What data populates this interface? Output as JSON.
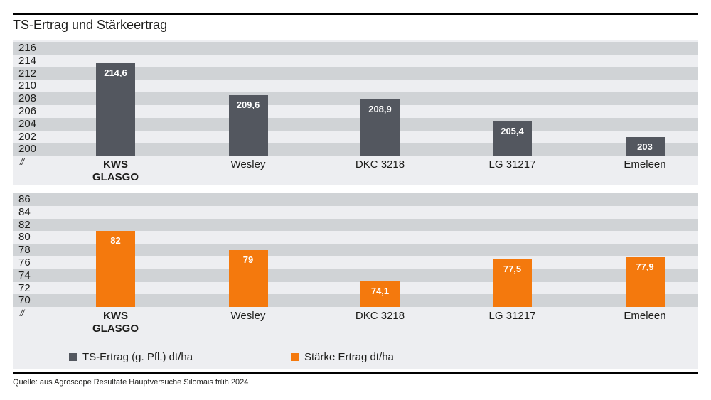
{
  "page": {
    "title": "TS-Ertrag und Stärkeertrag",
    "source": "Quelle: aus Agroscope Resultate Hauptversuche Silomais früh 2024"
  },
  "colors": {
    "ts_bar": "#53575f",
    "staerke_bar": "#f4790d",
    "panel_background": "#edeef1",
    "stripe_gray": "#d0d3d6",
    "value_label_text": "#ffffff",
    "text": "#1d1d1b"
  },
  "legend": {
    "items": [
      {
        "label": "TS-Ertrag (g. Pfl.) dt/ha",
        "color": "#53575f"
      },
      {
        "label": "Stärke Ertrag dt/ha",
        "color": "#f4790d"
      }
    ]
  },
  "chart_data": [
    {
      "type": "bar",
      "series_name": "TS-Ertrag (g. Pfl.) dt/ha",
      "categories": [
        "KWS GLASGO",
        "Wesley",
        "DKC 3218",
        "LG 31217",
        "Emeleen"
      ],
      "values": [
        214.6,
        209.6,
        208.9,
        205.4,
        203
      ],
      "value_labels": [
        "214,6",
        "209,6",
        "208,9",
        "205,4",
        "203"
      ],
      "yticks": [
        216,
        214,
        212,
        210,
        208,
        206,
        204,
        202,
        200
      ],
      "ylim": [
        200,
        218
      ],
      "axis_break": "//",
      "bar_color": "#53575f",
      "emphasized_category": "KWS GLASGO",
      "grid": "alternating horizontal bands",
      "legend_position": "bottom"
    },
    {
      "type": "bar",
      "series_name": "Stärke Ertrag dt/ha",
      "categories": [
        "KWS GLASGO",
        "Wesley",
        "DKC 3218",
        "LG 31217",
        "Emeleen"
      ],
      "values": [
        82,
        79,
        74.1,
        77.5,
        77.9
      ],
      "value_labels": [
        "82",
        "79",
        "74,1",
        "77,5",
        "77,9"
      ],
      "yticks": [
        86,
        84,
        82,
        80,
        78,
        76,
        74,
        72,
        70
      ],
      "ylim": [
        70,
        88
      ],
      "axis_break": "//",
      "bar_color": "#f4790d",
      "emphasized_category": "KWS GLASGO",
      "grid": "alternating horizontal bands",
      "legend_position": "bottom"
    }
  ]
}
